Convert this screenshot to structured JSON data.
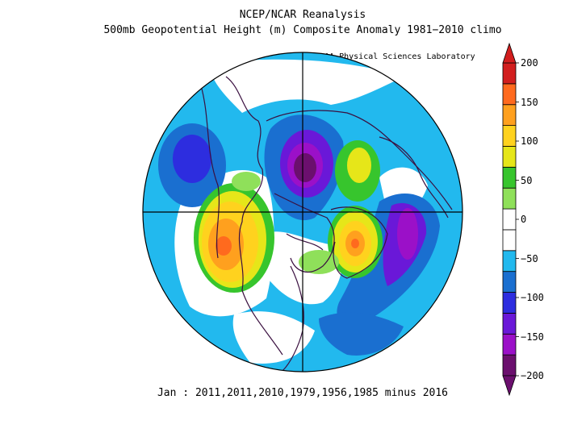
{
  "header": {
    "title": "NCEP/NCAR Reanalysis",
    "subtitle": "500mb Geopotential Height (m) Composite Anomaly 1981−2010 climo",
    "credit": "NOAA Physical Sciences Laboratory"
  },
  "footer": {
    "caption": "Jan : 2011,2011,2010,1979,1956,1985 minus 2016"
  },
  "colorbar": {
    "labels": [
      "200",
      "150",
      "100",
      "50",
      "0",
      "−50",
      "−100",
      "−150",
      "−200"
    ],
    "colors": [
      "#6b0f6e",
      "#9b10c8",
      "#6a18d8",
      "#2d2ddf",
      "#1a6fd0",
      "#22b9ee",
      "#ffffff",
      "#ffffff",
      "#8fe05a",
      "#37c52d",
      "#e6e619",
      "#ffd21e",
      "#ffa01e",
      "#ff6a1e",
      "#d21e1e"
    ]
  },
  "map": {
    "projection": "polar-stereographic-north",
    "colors": {
      "ocean_white": "#ffffff",
      "light_blue": "#22b9ee",
      "blue": "#1a6fd0",
      "dark_blue": "#2d2ddf",
      "indigo": "#6a18d8",
      "purple": "#9b10c8",
      "dark_purple": "#6b0f6e",
      "light_green": "#8fe05a",
      "green": "#37c52d",
      "yellow": "#e6e619",
      "gold": "#ffd21e",
      "orange": "#ffa01e",
      "dark_orange": "#ff6a1e",
      "red": "#d21e1e",
      "coast": "#3a1040"
    }
  }
}
